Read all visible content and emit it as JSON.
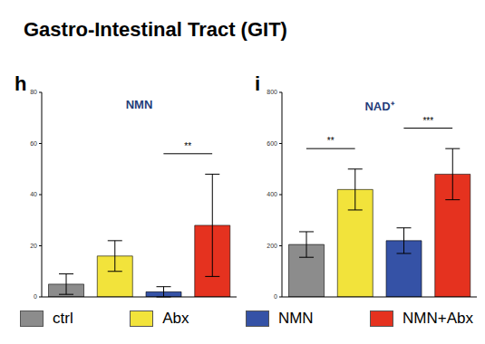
{
  "title": "Gastro-Intestinal Tract (GIT)",
  "legend": "bottom",
  "chart_data": [
    {
      "type": "bar",
      "label": "h",
      "title": "NMN",
      "categories": [
        "ctrl",
        "Abx",
        "NMN",
        "NMN+Abx"
      ],
      "values": [
        5,
        16,
        2,
        28
      ],
      "errors": [
        4,
        6,
        2,
        20
      ],
      "colors": [
        "#8c8c8c",
        "#f2e33b",
        "#3552a6",
        "#e5321f"
      ],
      "ylim": [
        0,
        80
      ],
      "yticks": [
        0,
        20,
        40,
        60,
        80
      ],
      "grid": false,
      "tick_labels": "y",
      "annotations": [
        {
          "from": "NMN",
          "to": "NMN+Abx",
          "text": "**"
        }
      ]
    },
    {
      "type": "bar",
      "label": "i",
      "title": "NAD⁺",
      "categories": [
        "ctrl",
        "Abx",
        "NMN",
        "NMN+Abx"
      ],
      "values": [
        205,
        420,
        220,
        480
      ],
      "errors": [
        50,
        80,
        50,
        100
      ],
      "colors": [
        "#8c8c8c",
        "#f2e33b",
        "#3552a6",
        "#e5321f"
      ],
      "ylim": [
        0,
        800
      ],
      "yticks": [
        0,
        200,
        400,
        600,
        800
      ],
      "grid": false,
      "tick_labels": "y",
      "annotations": [
        {
          "from": "ctrl",
          "to": "Abx",
          "text": "**"
        },
        {
          "from": "NMN",
          "to": "NMN+Abx",
          "text": "***"
        }
      ]
    }
  ]
}
